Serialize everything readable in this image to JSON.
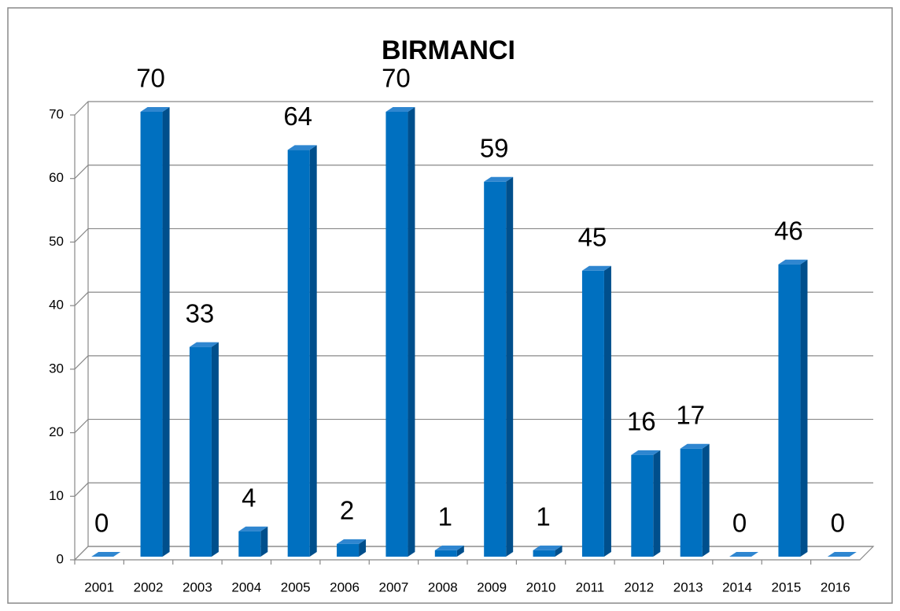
{
  "chart_data": {
    "type": "bar",
    "title": "BIRMANCI",
    "categories": [
      "2001",
      "2002",
      "2003",
      "2004",
      "2005",
      "2006",
      "2007",
      "2008",
      "2009",
      "2010",
      "2011",
      "2012",
      "2013",
      "2014",
      "2015",
      "2016"
    ],
    "values": [
      0,
      70,
      33,
      4,
      64,
      2,
      70,
      1,
      59,
      1,
      45,
      16,
      17,
      0,
      46,
      0
    ],
    "color": "#0070c0",
    "ylim": [
      0,
      70
    ],
    "yticks": [
      0,
      10,
      20,
      30,
      40,
      50,
      60,
      70
    ],
    "grid": true
  }
}
